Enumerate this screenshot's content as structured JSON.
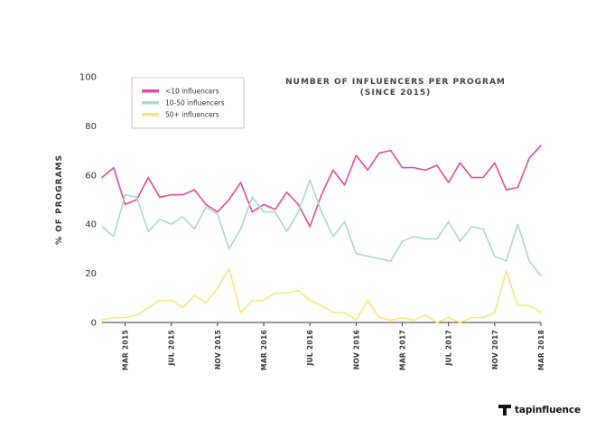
{
  "brand": {
    "name": "tapinfluence",
    "icon": "tapinfluence-logo-icon"
  },
  "chart_data": {
    "type": "line",
    "title": "NUMBER OF INFLUENCERS PER PROGRAM",
    "subtitle": "(SINCE 2015)",
    "ylabel": "% OF PROGRAMS",
    "xlabel": "",
    "ylim": [
      0,
      100
    ],
    "yticks": [
      "0",
      "20",
      "40",
      "60",
      "80",
      "100"
    ],
    "grid": false,
    "legend_position": "top-left",
    "x_start": "2015-01",
    "x_end": "2018-03",
    "xtick_labels": [
      "MAR 2015",
      "JUL 2015",
      "NOV 2015",
      "MAR 2016",
      "JUL 2016",
      "NOV 2016",
      "MAR 2017",
      "JUL 2017",
      "NOV 2017",
      "MAR 2018"
    ],
    "series": [
      {
        "name": "<10 influencers",
        "color": "#e8489a",
        "values": [
          59,
          63,
          48,
          50,
          59,
          51,
          52,
          52,
          54,
          48,
          45,
          50,
          57,
          45,
          48,
          46,
          53,
          48,
          39,
          52,
          62,
          56,
          68,
          62,
          69,
          70,
          63,
          63,
          62,
          64,
          57,
          65,
          59,
          59,
          65,
          54,
          55,
          67,
          72
        ]
      },
      {
        "name": "10-50 influencers",
        "color": "#a8dcc5",
        "values": [
          39,
          35,
          52,
          51,
          37,
          42,
          40,
          43,
          38,
          47,
          44,
          30,
          38,
          51,
          45,
          45,
          37,
          45,
          58,
          45,
          35,
          41,
          28,
          27,
          26,
          25,
          33,
          35,
          34,
          34,
          41,
          33,
          39,
          38,
          27,
          25,
          40,
          25,
          19
        ]
      },
      {
        "name": "50+ influencers",
        "color": "#fde37c",
        "values": [
          1,
          2,
          2,
          3,
          6,
          9,
          9,
          6,
          11,
          8,
          14,
          22,
          4,
          9,
          9,
          12,
          12,
          13,
          9,
          7,
          4,
          4,
          1,
          9,
          2,
          1,
          2,
          1,
          3,
          0,
          2,
          0,
          2,
          2,
          4,
          21,
          7,
          7,
          4
        ]
      }
    ]
  }
}
